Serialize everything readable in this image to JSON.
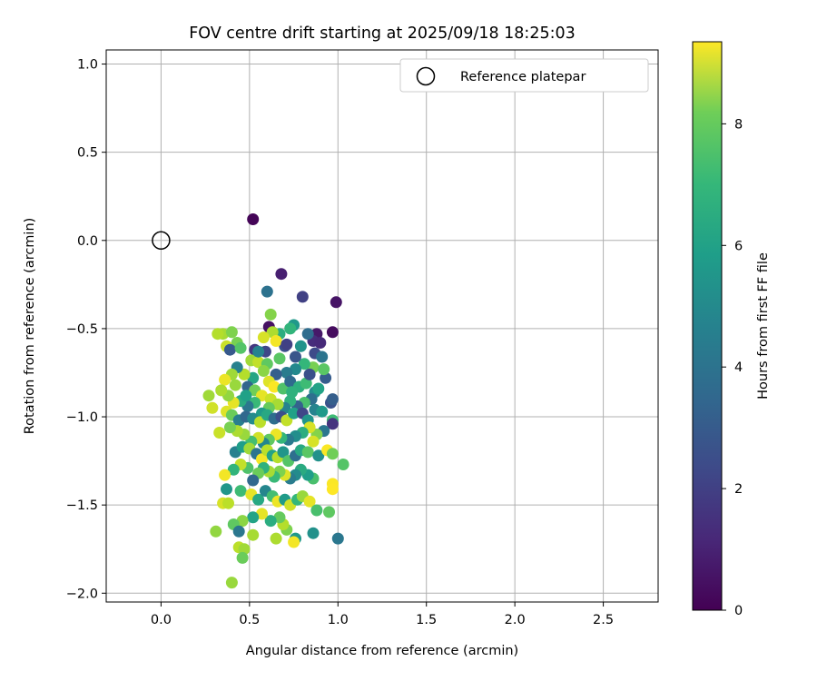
{
  "chart_data": {
    "type": "scatter",
    "title": "FOV centre drift starting at 2025/09/18 18:25:03",
    "xlabel": "Angular distance from reference (arcmin)",
    "ylabel": "Rotation from reference (arcmin)",
    "xlim": [
      -0.31,
      2.81
    ],
    "ylim": [
      -2.05,
      1.08
    ],
    "xticks": [
      0.0,
      0.5,
      1.0,
      1.5,
      2.0,
      2.5
    ],
    "xtick_labels": [
      "0.0",
      "0.5",
      "1.0",
      "1.5",
      "2.0",
      "2.5"
    ],
    "yticks": [
      1.0,
      0.5,
      0.0,
      -0.5,
      -1.0,
      -1.5,
      -2.0
    ],
    "ytick_labels": [
      "1.0",
      "0.5",
      "0.0",
      "−0.5",
      "−1.0",
      "−1.5",
      "−2.0"
    ],
    "grid": true,
    "legend": {
      "position": "top-right",
      "label": "Reference platepar"
    },
    "reference_point": {
      "x": 0.0,
      "y": 0.0
    },
    "colorbar": {
      "label": "Hours from first FF file",
      "min": 0,
      "max": 9.35,
      "ticks": [
        0,
        2,
        4,
        6,
        8
      ],
      "tick_labels": [
        "0",
        "2",
        "4",
        "6",
        "8"
      ],
      "colormap": "viridis"
    },
    "points": [
      [
        0.52,
        0.12,
        0.1
      ],
      [
        0.68,
        -0.19,
        0.8
      ],
      [
        0.99,
        -0.35,
        0.5
      ],
      [
        0.8,
        -0.32,
        1.8
      ],
      [
        0.6,
        -0.29,
        3.5
      ],
      [
        0.97,
        -0.52,
        0.3
      ],
      [
        0.61,
        -0.49,
        0.4
      ],
      [
        0.88,
        -0.53,
        0.6
      ],
      [
        0.86,
        -0.57,
        1.2
      ],
      [
        0.53,
        -0.62,
        1.5
      ],
      [
        0.59,
        -0.63,
        2.0
      ],
      [
        0.7,
        -0.6,
        2.3
      ],
      [
        0.75,
        -0.48,
        5.0
      ],
      [
        0.73,
        -0.5,
        6.1
      ],
      [
        0.67,
        -0.53,
        5.8
      ],
      [
        0.62,
        -0.42,
        7.6
      ],
      [
        0.63,
        -0.52,
        8.2
      ],
      [
        0.65,
        -0.57,
        9.2
      ],
      [
        0.58,
        -0.55,
        8.8
      ],
      [
        0.43,
        -0.58,
        7.4
      ],
      [
        0.35,
        -0.53,
        8.1
      ],
      [
        0.4,
        -0.52,
        7.5
      ],
      [
        0.37,
        -0.6,
        8.6
      ],
      [
        0.32,
        -0.53,
        8.3
      ],
      [
        0.39,
        -0.62,
        2.6
      ],
      [
        0.45,
        -0.61,
        6.8
      ],
      [
        0.51,
        -0.68,
        8.0
      ],
      [
        0.55,
        -0.69,
        8.5
      ],
      [
        0.6,
        -0.7,
        7.0
      ],
      [
        0.67,
        -0.67,
        6.9
      ],
      [
        0.79,
        -0.6,
        4.8
      ],
      [
        0.83,
        -0.53,
        3.3
      ],
      [
        0.9,
        -0.58,
        1.1
      ],
      [
        0.87,
        -0.64,
        2.1
      ],
      [
        0.91,
        -0.66,
        3.6
      ],
      [
        0.93,
        -0.78,
        2.7
      ],
      [
        0.86,
        -0.72,
        7.4
      ],
      [
        0.81,
        -0.7,
        6.2
      ],
      [
        0.76,
        -0.73,
        4.4
      ],
      [
        0.71,
        -0.75,
        3.9
      ],
      [
        0.65,
        -0.76,
        2.8
      ],
      [
        0.61,
        -0.8,
        8.9
      ],
      [
        0.58,
        -0.74,
        7.7
      ],
      [
        0.52,
        -0.78,
        5.5
      ],
      [
        0.47,
        -0.76,
        8.3
      ],
      [
        0.43,
        -0.72,
        4.1
      ],
      [
        0.4,
        -0.76,
        8.0
      ],
      [
        0.36,
        -0.79,
        9.1
      ],
      [
        0.42,
        -0.82,
        7.9
      ],
      [
        0.49,
        -0.83,
        3.0
      ],
      [
        0.53,
        -0.85,
        7.3
      ],
      [
        0.57,
        -0.88,
        9.0
      ],
      [
        0.62,
        -0.9,
        8.6
      ],
      [
        0.64,
        -0.83,
        9.3
      ],
      [
        0.69,
        -0.84,
        6.7
      ],
      [
        0.73,
        -0.8,
        3.2
      ],
      [
        0.78,
        -0.83,
        5.9
      ],
      [
        0.82,
        -0.81,
        6.4
      ],
      [
        0.87,
        -0.86,
        4.6
      ],
      [
        0.89,
        -0.84,
        5.4
      ],
      [
        0.85,
        -0.9,
        3.4
      ],
      [
        0.81,
        -0.92,
        6.6
      ],
      [
        0.77,
        -0.94,
        2.9
      ],
      [
        0.73,
        -0.91,
        6.0
      ],
      [
        0.7,
        -0.95,
        4.2
      ],
      [
        0.66,
        -0.93,
        8.1
      ],
      [
        0.61,
        -0.95,
        7.1
      ],
      [
        0.57,
        -0.98,
        5.1
      ],
      [
        0.53,
        -0.92,
        6.3
      ],
      [
        0.49,
        -0.94,
        3.7
      ],
      [
        0.45,
        -0.91,
        5.7
      ],
      [
        0.41,
        -0.92,
        9.0
      ],
      [
        0.38,
        -0.88,
        7.8
      ],
      [
        0.34,
        -0.85,
        8.2
      ],
      [
        0.27,
        -0.88,
        8.0
      ],
      [
        0.29,
        -0.95,
        8.7
      ],
      [
        0.37,
        -0.97,
        8.9
      ],
      [
        0.4,
        -0.99,
        7.2
      ],
      [
        0.44,
        -1.02,
        4.0
      ],
      [
        0.48,
        -1.0,
        3.1
      ],
      [
        0.52,
        -1.01,
        4.5
      ],
      [
        0.56,
        -1.03,
        8.4
      ],
      [
        0.6,
        -0.99,
        5.6
      ],
      [
        0.64,
        -1.01,
        3.3
      ],
      [
        0.68,
        -1.0,
        2.2
      ],
      [
        0.71,
        -1.02,
        8.5
      ],
      [
        0.75,
        -0.98,
        5.3
      ],
      [
        0.8,
        -0.98,
        2.0
      ],
      [
        0.83,
        -1.02,
        4.9
      ],
      [
        0.87,
        -0.96,
        4.2
      ],
      [
        0.91,
        -0.97,
        5.0
      ],
      [
        0.96,
        -0.92,
        2.4
      ],
      [
        0.97,
        -0.9,
        2.8
      ],
      [
        0.97,
        -1.02,
        6.4
      ],
      [
        0.97,
        -1.04,
        1.4
      ],
      [
        0.92,
        -1.08,
        3.7
      ],
      [
        0.88,
        -1.1,
        7.6
      ],
      [
        0.84,
        -1.06,
        8.8
      ],
      [
        0.8,
        -1.09,
        5.8
      ],
      [
        0.76,
        -1.11,
        4.6
      ],
      [
        0.72,
        -1.13,
        3.8
      ],
      [
        0.68,
        -1.12,
        6.2
      ],
      [
        0.65,
        -1.1,
        9.1
      ],
      [
        0.61,
        -1.13,
        7.0
      ],
      [
        0.58,
        -1.15,
        4.3
      ],
      [
        0.55,
        -1.12,
        8.7
      ],
      [
        0.51,
        -1.14,
        6.5
      ],
      [
        0.47,
        -1.1,
        7.9
      ],
      [
        0.43,
        -1.08,
        8.2
      ],
      [
        0.39,
        -1.06,
        7.4
      ],
      [
        0.33,
        -1.09,
        8.6
      ],
      [
        0.42,
        -1.2,
        4.1
      ],
      [
        0.46,
        -1.17,
        5.2
      ],
      [
        0.5,
        -1.18,
        8.0
      ],
      [
        0.54,
        -1.21,
        3.6
      ],
      [
        0.57,
        -1.24,
        9.2
      ],
      [
        0.6,
        -1.19,
        8.4
      ],
      [
        0.63,
        -1.22,
        5.4
      ],
      [
        0.66,
        -1.23,
        8.3
      ],
      [
        0.69,
        -1.2,
        4.9
      ],
      [
        0.72,
        -1.25,
        6.8
      ],
      [
        0.76,
        -1.22,
        3.4
      ],
      [
        0.79,
        -1.19,
        5.6
      ],
      [
        0.83,
        -1.2,
        6.9
      ],
      [
        0.86,
        -1.14,
        8.8
      ],
      [
        0.89,
        -1.22,
        4.7
      ],
      [
        0.94,
        -1.19,
        9.3
      ],
      [
        0.97,
        -1.21,
        7.3
      ],
      [
        1.03,
        -1.27,
        6.8
      ],
      [
        0.97,
        -1.38,
        9.3
      ],
      [
        0.97,
        -1.41,
        9.4
      ],
      [
        0.86,
        -1.35,
        6.6
      ],
      [
        0.83,
        -1.33,
        5.2
      ],
      [
        0.79,
        -1.3,
        5.7
      ],
      [
        0.76,
        -1.33,
        4.5
      ],
      [
        0.73,
        -1.35,
        3.9
      ],
      [
        0.7,
        -1.33,
        8.9
      ],
      [
        0.67,
        -1.31,
        7.5
      ],
      [
        0.64,
        -1.34,
        6.3
      ],
      [
        0.61,
        -1.31,
        8.1
      ],
      [
        0.58,
        -1.29,
        6.0
      ],
      [
        0.55,
        -1.32,
        7.2
      ],
      [
        0.52,
        -1.36,
        3.1
      ],
      [
        0.49,
        -1.29,
        6.7
      ],
      [
        0.45,
        -1.27,
        8.5
      ],
      [
        0.41,
        -1.3,
        6.1
      ],
      [
        0.36,
        -1.33,
        9.2
      ],
      [
        0.37,
        -1.41,
        4.9
      ],
      [
        0.45,
        -1.42,
        6.4
      ],
      [
        0.51,
        -1.44,
        9.0
      ],
      [
        0.55,
        -1.47,
        5.6
      ],
      [
        0.59,
        -1.42,
        4.3
      ],
      [
        0.63,
        -1.45,
        6.5
      ],
      [
        0.66,
        -1.48,
        9.1
      ],
      [
        0.7,
        -1.47,
        5.1
      ],
      [
        0.73,
        -1.5,
        8.7
      ],
      [
        0.77,
        -1.47,
        6.2
      ],
      [
        0.8,
        -1.45,
        7.9
      ],
      [
        0.84,
        -1.48,
        9.0
      ],
      [
        0.88,
        -1.53,
        6.6
      ],
      [
        0.95,
        -1.54,
        7.0
      ],
      [
        0.86,
        -1.66,
        4.7
      ],
      [
        0.76,
        -1.69,
        5.0
      ],
      [
        0.71,
        -1.64,
        7.5
      ],
      [
        0.69,
        -1.61,
        8.3
      ],
      [
        0.67,
        -1.57,
        7.1
      ],
      [
        0.62,
        -1.59,
        5.8
      ],
      [
        0.57,
        -1.55,
        9.0
      ],
      [
        0.52,
        -1.57,
        5.4
      ],
      [
        0.46,
        -1.59,
        7.7
      ],
      [
        0.41,
        -1.61,
        7.0
      ],
      [
        0.35,
        -1.49,
        8.8
      ],
      [
        0.38,
        -1.49,
        8.4
      ],
      [
        0.31,
        -1.65,
        7.8
      ],
      [
        0.44,
        -1.65,
        3.7
      ],
      [
        0.52,
        -1.67,
        8.1
      ],
      [
        0.65,
        -1.69,
        8.2
      ],
      [
        0.75,
        -1.71,
        9.2
      ],
      [
        0.44,
        -1.74,
        8.4
      ],
      [
        0.47,
        -1.75,
        8.0
      ],
      [
        0.46,
        -1.8,
        7.2
      ],
      [
        0.4,
        -1.94,
        7.9
      ],
      [
        1.0,
        -1.69,
        3.7
      ],
      [
        0.71,
        -0.59,
        1.8
      ],
      [
        0.76,
        -0.66,
        2.5
      ],
      [
        0.55,
        -0.63,
        4.2
      ],
      [
        0.48,
        -0.88,
        5.3
      ],
      [
        0.92,
        -0.73,
        6.9
      ],
      [
        0.84,
        -0.76,
        2.3
      ],
      [
        0.74,
        -0.86,
        6.0
      ]
    ]
  }
}
